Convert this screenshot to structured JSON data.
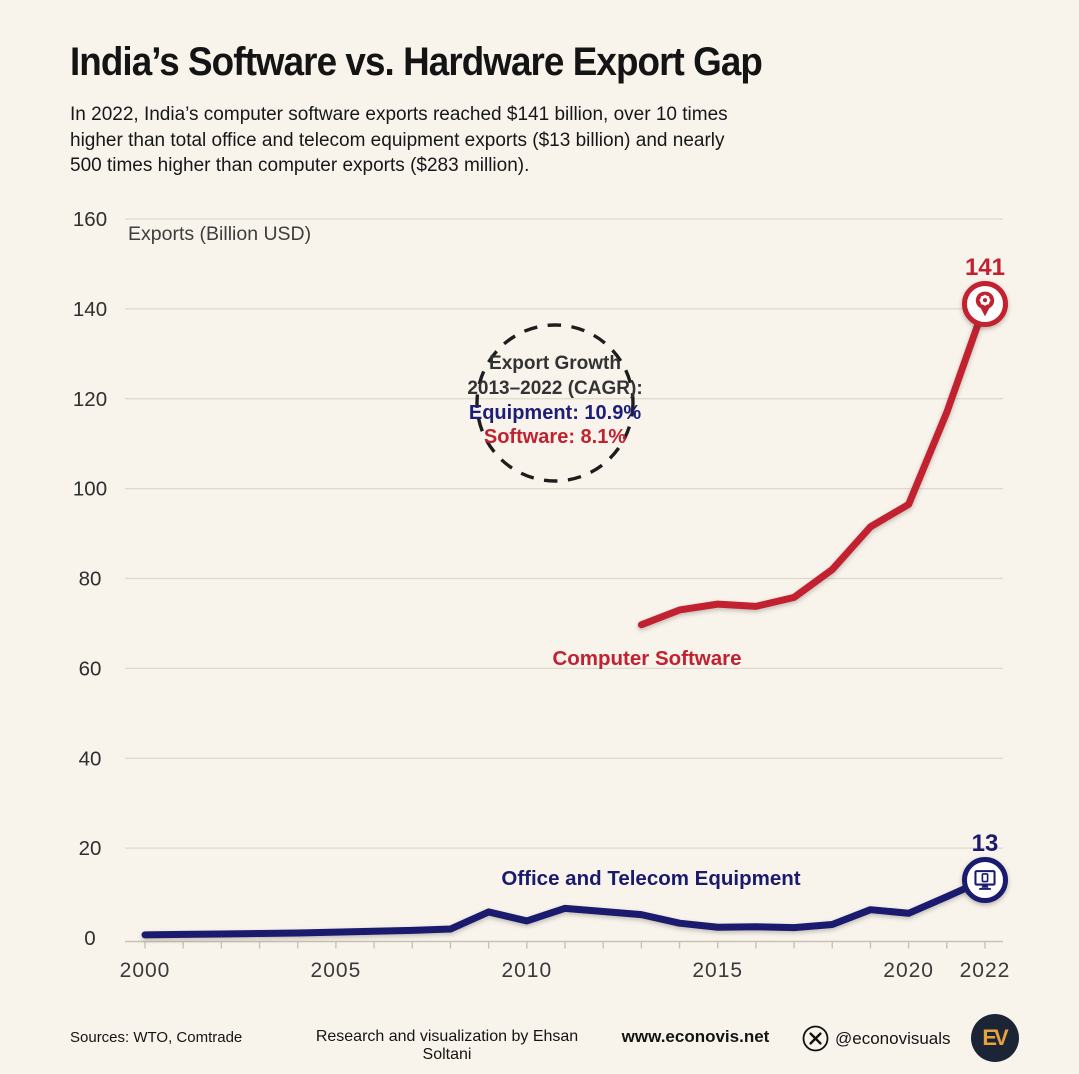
{
  "page": {
    "background": "#f8f4ec"
  },
  "header": {
    "title": "India’s Software vs. Hardware Export Gap",
    "subtitle": "In 2022, India’s computer software exports reached $141 billion, over 10 times\nhigher than total office and telecom equipment exports ($13 billion) and nearly\n500 times higher than computer exports ($283 million)."
  },
  "chart_data": {
    "type": "line",
    "title": "India’s Software vs. Hardware Export Gap",
    "ylabel": "Exports (Billion USD)",
    "xlabel": "",
    "ylim": [
      0,
      160
    ],
    "yticks": [
      0,
      20,
      40,
      60,
      80,
      100,
      120,
      140,
      160
    ],
    "xticks": [
      2000,
      2005,
      2010,
      2015,
      2020,
      2022
    ],
    "xrange": [
      2000,
      2022
    ],
    "grid": true,
    "legend_position": "inline-labels",
    "series": [
      {
        "key": "computer-software",
        "name": "Computer Software",
        "color": "#c22130",
        "x": [
          2013,
          2014,
          2015,
          2016,
          2017,
          2018,
          2019,
          2020,
          2021,
          2022
        ],
        "values": [
          69.7,
          73.0,
          74.3,
          73.8,
          75.8,
          82.0,
          91.5,
          96.5,
          117.0,
          141.0
        ],
        "end_label": "141",
        "end_icon": "location-pin-gear-icon"
      },
      {
        "key": "office-telecom-equipment",
        "name": "Office and Telecom Equipment",
        "color": "#1a1a6e",
        "x": [
          2000,
          2001,
          2002,
          2003,
          2004,
          2005,
          2006,
          2007,
          2008,
          2009,
          2010,
          2011,
          2012,
          2013,
          2014,
          2015,
          2016,
          2017,
          2018,
          2019,
          2020,
          2021,
          2022
        ],
        "values": [
          0.7,
          0.8,
          0.9,
          1.0,
          1.1,
          1.3,
          1.5,
          1.7,
          2.0,
          5.8,
          3.8,
          6.6,
          5.9,
          5.2,
          3.3,
          2.4,
          2.5,
          2.3,
          3.0,
          6.3,
          5.5,
          9.2,
          13.0
        ],
        "end_label": "13",
        "end_icon": "desktop-monitor-icon"
      }
    ],
    "annotation": {
      "line1": "Export Growth",
      "line2": "2013–2022 (CAGR):",
      "equipment": "Equipment: 10.9%",
      "software": "Software: 8.1%"
    }
  },
  "footer": {
    "sources": "Sources: WTO, Comtrade",
    "credit": "Research and visualization by Ehsan Soltani",
    "website": "www.econovis.net",
    "x_handle": "@econovisuals",
    "logo_text": "EV"
  },
  "colors": {
    "software_red": "#c22130",
    "equipment_navy": "#1a1a6e",
    "grid": "#ded9cd",
    "axis": "#c7c2b6",
    "tick_text": "#3a3a3a",
    "background": "#f8f4ec",
    "logo_bg": "#1b2536",
    "logo_gold": "#e8a23b"
  }
}
